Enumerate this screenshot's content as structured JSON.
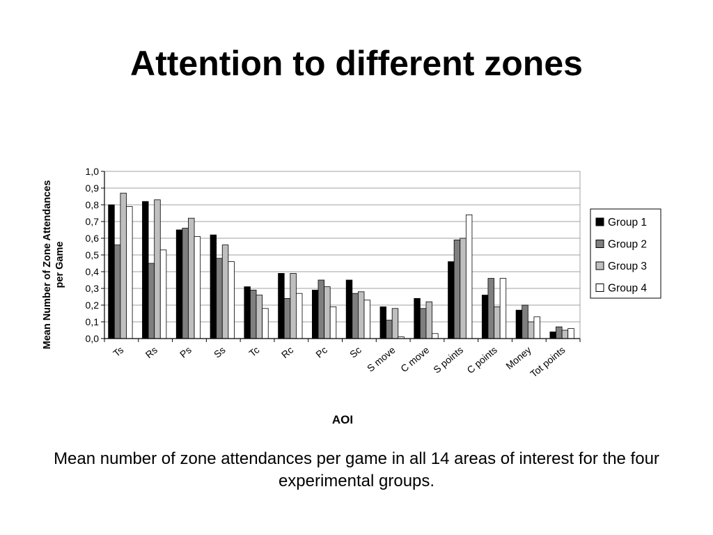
{
  "slide": {
    "title": "Attention to different zones",
    "caption": "Mean number of zone attendances per game in all 14 areas of interest for the four experimental groups."
  },
  "colors": {
    "group1": "#000000",
    "group2": "#7f7f7f",
    "group3": "#bfbfbf",
    "group4": "#ffffff",
    "gridline": "#a0a0a0",
    "axis": "#000000"
  },
  "chart_data": {
    "type": "bar",
    "xlabel": "AOI",
    "ylabel": "Mean Number of Zone Attendances per Game",
    "ylim": [
      0,
      1.0
    ],
    "yticks": [
      "0,0",
      "0,1",
      "0,2",
      "0,3",
      "0,4",
      "0,5",
      "0,6",
      "0,7",
      "0,8",
      "0,9",
      "1,0"
    ],
    "grid": true,
    "legend_position": "right",
    "categories": [
      "Ts",
      "Rs",
      "Ps",
      "Ss",
      "Tc",
      "Rc",
      "Pc",
      "Sc",
      "S move",
      "C move",
      "S points",
      "C points",
      "Money",
      "Tot points"
    ],
    "series": [
      {
        "name": "Group 1",
        "values": [
          0.8,
          0.82,
          0.65,
          0.62,
          0.31,
          0.39,
          0.29,
          0.35,
          0.19,
          0.24,
          0.46,
          0.26,
          0.17,
          0.04
        ]
      },
      {
        "name": "Group 2",
        "values": [
          0.56,
          0.45,
          0.66,
          0.48,
          0.29,
          0.24,
          0.35,
          0.27,
          0.11,
          0.18,
          0.59,
          0.36,
          0.2,
          0.07
        ]
      },
      {
        "name": "Group 3",
        "values": [
          0.87,
          0.83,
          0.72,
          0.56,
          0.26,
          0.39,
          0.31,
          0.28,
          0.18,
          0.22,
          0.6,
          0.19,
          0.1,
          0.05
        ]
      },
      {
        "name": "Group 4",
        "values": [
          0.79,
          0.53,
          0.61,
          0.46,
          0.18,
          0.27,
          0.19,
          0.23,
          0.01,
          0.03,
          0.74,
          0.36,
          0.13,
          0.06
        ]
      }
    ]
  }
}
